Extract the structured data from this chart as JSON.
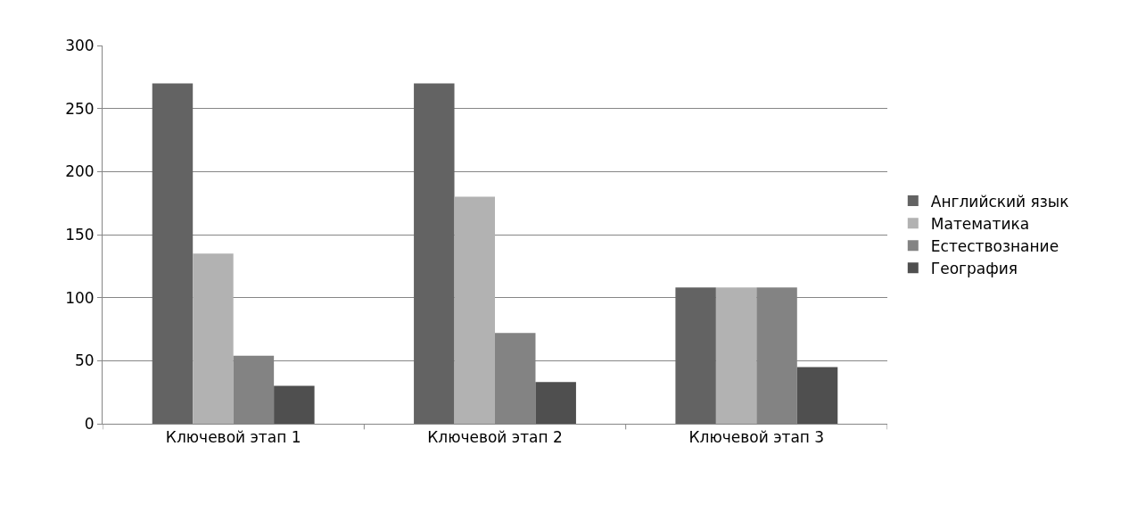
{
  "chart_data": {
    "type": "bar",
    "categories": [
      "Ключевой этап 1",
      "Ключевой этап 2",
      "Ключевой этап 3"
    ],
    "series": [
      {
        "name": "Английский язык",
        "color": "#636363",
        "values": [
          270,
          270,
          108
        ]
      },
      {
        "name": "Математика",
        "color": "#b2b2b2",
        "values": [
          135,
          180,
          108
        ]
      },
      {
        "name": "Естествознание",
        "color": "#838383",
        "values": [
          54,
          72,
          108
        ]
      },
      {
        "name": "География",
        "color": "#4f4f4f",
        "values": [
          30,
          33,
          45
        ]
      }
    ],
    "ylim": [
      0,
      300
    ],
    "yticks": [
      0,
      50,
      100,
      150,
      200,
      250,
      300
    ],
    "grid": "y",
    "legend": "right"
  }
}
